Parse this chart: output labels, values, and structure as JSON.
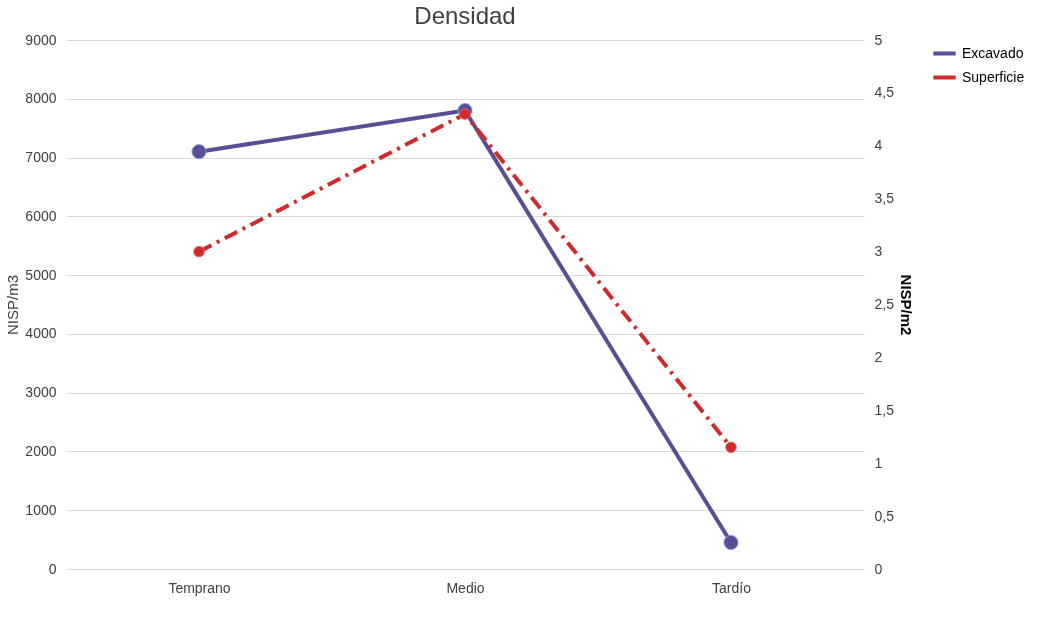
{
  "chart_data": {
    "type": "line",
    "title": "Densidad",
    "ylabel": "NISP/m3",
    "y2label": "NISP/m2",
    "categories": [
      "Temprano",
      "Medio",
      "Tardío"
    ],
    "series": [
      {
        "name": "Excavado",
        "color": "#5b4e96",
        "values": [
          7100,
          7800,
          450
        ],
        "line_style": "solid"
      },
      {
        "name": "Superficie",
        "color": "#d02a2a",
        "values": [
          3,
          4.3,
          1.15
        ],
        "axis": "y2",
        "line_style": "dashed"
      }
    ],
    "ylim": [
      0,
      9000
    ],
    "yticks": [
      0,
      1000,
      2000,
      3000,
      4000,
      5000,
      6000,
      7000,
      8000,
      9000
    ],
    "y2lim": [
      0,
      5
    ],
    "y2ticks": [
      0,
      {
        "value": 0.5,
        "label": "0,5"
      },
      1,
      {
        "value": 1.5,
        "label": "1,5"
      },
      2,
      {
        "value": 2.5,
        "label": "2,5"
      },
      3,
      {
        "value": 3.5,
        "label": "3,5"
      },
      4,
      {
        "value": 4.5,
        "label": "4,5"
      },
      5
    ],
    "grid": "y",
    "legend": "right",
    "marker": "circle"
  }
}
